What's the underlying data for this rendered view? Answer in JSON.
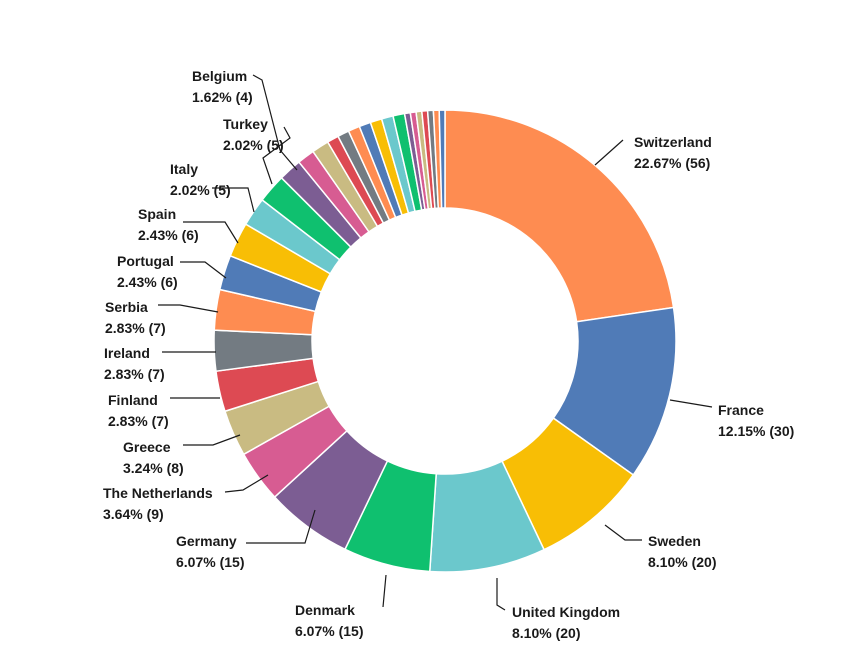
{
  "chart_data": {
    "type": "pie",
    "variant": "donut",
    "title": "",
    "slices": [
      {
        "label": "Switzerland",
        "value_text": "22.67% (56)",
        "percent": 22.67,
        "count": 56,
        "color": "#FE8C51"
      },
      {
        "label": "France",
        "value_text": "12.15% (30)",
        "percent": 12.15,
        "count": 30,
        "color": "#507BB7"
      },
      {
        "label": "Sweden",
        "value_text": "8.10% (20)",
        "percent": 8.1,
        "count": 20,
        "color": "#F8BE05"
      },
      {
        "label": "United Kingdom",
        "value_text": "8.10% (20)",
        "percent": 8.1,
        "count": 20,
        "color": "#6BC8CC"
      },
      {
        "label": "Denmark",
        "value_text": "6.07% (15)",
        "percent": 6.07,
        "count": 15,
        "color": "#0FC06F"
      },
      {
        "label": "Germany",
        "value_text": "6.07% (15)",
        "percent": 6.07,
        "count": 15,
        "color": "#7C5D93"
      },
      {
        "label": "The Netherlands",
        "value_text": "3.64% (9)",
        "percent": 3.64,
        "count": 9,
        "color": "#D75C92"
      },
      {
        "label": "Greece",
        "value_text": "3.24% (8)",
        "percent": 3.24,
        "count": 8,
        "color": "#C9BB82"
      },
      {
        "label": "Finland",
        "value_text": "2.83% (7)",
        "percent": 2.83,
        "count": 7,
        "color": "#DD4A53"
      },
      {
        "label": "Ireland",
        "value_text": "2.83% (7)",
        "percent": 2.83,
        "count": 7,
        "color": "#737B82"
      },
      {
        "label": "Serbia",
        "value_text": "2.83% (7)",
        "percent": 2.83,
        "count": 7,
        "color": "#FE8C51"
      },
      {
        "label": "Portugal",
        "value_text": "2.43% (6)",
        "percent": 2.43,
        "count": 6,
        "color": "#507BB7"
      },
      {
        "label": "Spain",
        "value_text": "2.43% (6)",
        "percent": 2.43,
        "count": 6,
        "color": "#F8BE05"
      },
      {
        "label": "Italy",
        "value_text": "2.02% (5)",
        "percent": 2.02,
        "count": 5,
        "color": "#6BC8CC"
      },
      {
        "label": "Turkey",
        "value_text": "2.02% (5)",
        "percent": 2.02,
        "count": 5,
        "color": "#0FC06F"
      },
      {
        "label": "Belgium",
        "value_text": "1.62% (4)",
        "percent": 1.62,
        "count": 4,
        "color": "#7C5D93"
      }
    ],
    "unlabeled_slices": [
      {
        "percent": 1.21,
        "color": "#D75C92"
      },
      {
        "percent": 1.21,
        "color": "#C9BB82"
      },
      {
        "percent": 0.81,
        "color": "#DD4A53"
      },
      {
        "percent": 0.81,
        "color": "#737B82"
      },
      {
        "percent": 0.81,
        "color": "#FE8C51"
      },
      {
        "percent": 0.81,
        "color": "#507BB7"
      },
      {
        "percent": 0.81,
        "color": "#F8BE05"
      },
      {
        "percent": 0.81,
        "color": "#6BC8CC"
      },
      {
        "percent": 0.81,
        "color": "#0FC06F"
      },
      {
        "percent": 0.4,
        "color": "#7C5D93"
      },
      {
        "percent": 0.4,
        "color": "#D75C92"
      },
      {
        "percent": 0.4,
        "color": "#C9BB82"
      },
      {
        "percent": 0.4,
        "color": "#DD4A53"
      },
      {
        "percent": 0.4,
        "color": "#737B82"
      },
      {
        "percent": 0.4,
        "color": "#FE8C51"
      },
      {
        "percent": 0.4,
        "color": "#507BB7"
      }
    ],
    "start_angle_deg": 0,
    "direction": "clockwise",
    "legend": "none"
  }
}
